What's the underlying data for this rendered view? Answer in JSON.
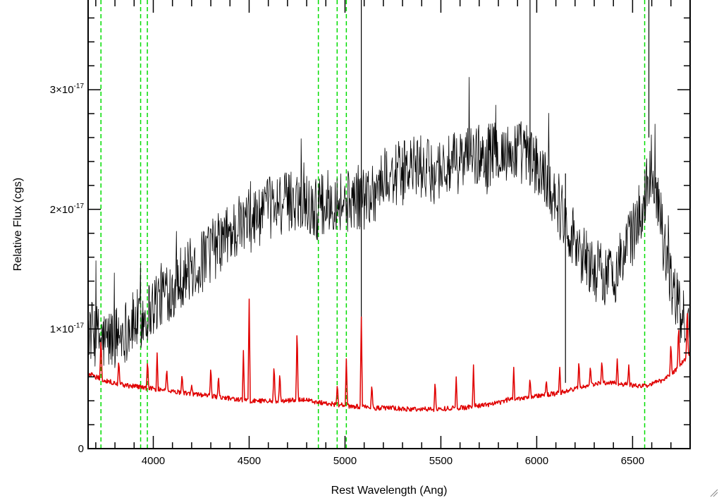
{
  "chart_data": {
    "type": "line",
    "title": "",
    "xlabel": "Rest Wavelength (Ang)",
    "ylabel": "Relative Flux (cgs)",
    "xlim": [
      3660,
      6800
    ],
    "ylim": [
      0,
      3.75e-17
    ],
    "x_ticks": [
      {
        "value": 4000,
        "label": "4000"
      },
      {
        "value": 4500,
        "label": "4500"
      },
      {
        "value": 5000,
        "label": "5000"
      },
      {
        "value": 5500,
        "label": "5500"
      },
      {
        "value": 6000,
        "label": "6000"
      },
      {
        "value": 6500,
        "label": "6500"
      }
    ],
    "y_ticks": [
      {
        "value": 0,
        "mantissa": "0",
        "exponent": ""
      },
      {
        "value": 1e-17,
        "mantissa": "1×10",
        "exponent": "-17"
      },
      {
        "value": 2e-17,
        "mantissa": "2×10",
        "exponent": "-17"
      },
      {
        "value": 3e-17,
        "mantissa": "3×10",
        "exponent": "-17"
      }
    ],
    "grid": false,
    "vertical_lines": [
      3727,
      3934,
      3969,
      4861,
      4959,
      5007,
      6563
    ],
    "series": [
      {
        "color": "#000000",
        "x": [
          3660,
          3700,
          3740,
          3780,
          3820,
          3860,
          3900,
          3950,
          4000,
          4050,
          4100,
          4150,
          4200,
          4250,
          4300,
          4350,
          4400,
          4450,
          4500,
          4550,
          4600,
          4650,
          4700,
          4750,
          4800,
          4850,
          4900,
          4950,
          5000,
          5050,
          5100,
          5150,
          5200,
          5250,
          5300,
          5350,
          5400,
          5450,
          5500,
          5550,
          5600,
          5650,
          5700,
          5750,
          5800,
          5850,
          5900,
          5950,
          6000,
          6050,
          6100,
          6150,
          6200,
          6250,
          6300,
          6350,
          6400,
          6450,
          6500,
          6550,
          6600,
          6650,
          6700,
          6750,
          6800
        ],
        "y": [
          1e-17,
          9.5e-18,
          9e-18,
          9.2e-18,
          9.5e-18,
          1e-17,
          1.05e-17,
          1.1e-17,
          1.2e-17,
          1.3e-17,
          1.35e-17,
          1.45e-17,
          1.5e-17,
          1.55e-17,
          1.65e-17,
          1.72e-17,
          1.8e-17,
          1.85e-17,
          1.9e-17,
          1.95e-17,
          2e-17,
          2.05e-17,
          2.05e-17,
          2.1e-17,
          2.05e-17,
          2e-17,
          2.05e-17,
          2.1e-17,
          2.05e-17,
          2.1e-17,
          2.1e-17,
          2.15e-17,
          2.25e-17,
          2.3e-17,
          2.3e-17,
          2.35e-17,
          2.35e-17,
          2.3e-17,
          2.35e-17,
          2.35e-17,
          2.4e-17,
          2.45e-17,
          2.45e-17,
          2.45e-17,
          2.5e-17,
          2.45e-17,
          2.5e-17,
          2.45e-17,
          2.35e-17,
          2.25e-17,
          2.1e-17,
          1.9e-17,
          1.75e-17,
          1.6e-17,
          1.5e-17,
          1.45e-17,
          1.45e-17,
          1.6e-17,
          1.8e-17,
          2e-17,
          2.4e-17,
          1.9e-17,
          1.4e-17,
          1.1e-17,
          1e-17
        ],
        "noise": 2.7e-18
      },
      {
        "color": "#e00000",
        "x": [
          3660,
          3700,
          3750,
          3800,
          3850,
          3900,
          3950,
          4000,
          4050,
          4100,
          4150,
          4200,
          4250,
          4300,
          4350,
          4400,
          4450,
          4500,
          4550,
          4600,
          4650,
          4700,
          4750,
          4800,
          4850,
          4900,
          4950,
          5000,
          5050,
          5100,
          5150,
          5200,
          5250,
          5300,
          5350,
          5400,
          5450,
          5500,
          5550,
          5600,
          5650,
          5700,
          5750,
          5800,
          5850,
          5900,
          5950,
          6000,
          6050,
          6100,
          6150,
          6200,
          6250,
          6300,
          6350,
          6400,
          6450,
          6500,
          6550,
          6600,
          6650,
          6700,
          6750,
          6800
        ],
        "y": [
          6.3e-18,
          6e-18,
          5.7e-18,
          5.5e-18,
          5.3e-18,
          5.2e-18,
          5.1e-18,
          5e-18,
          4.9e-18,
          4.8e-18,
          4.7e-18,
          4.6e-18,
          4.5e-18,
          4.4e-18,
          4.3e-18,
          4.2e-18,
          4.1e-18,
          4e-18,
          4e-18,
          4e-18,
          4e-18,
          4e-18,
          4.1e-18,
          4.1e-18,
          3.9e-18,
          3.8e-18,
          3.7e-18,
          3.6e-18,
          3.5e-18,
          3.5e-18,
          3.4e-18,
          3.4e-18,
          3.4e-18,
          3.3e-18,
          3.3e-18,
          3.3e-18,
          3.3e-18,
          3.3e-18,
          3.4e-18,
          3.4e-18,
          3.5e-18,
          3.6e-18,
          3.7e-18,
          3.8e-18,
          4.1e-18,
          4.2e-18,
          4.3e-18,
          4.4e-18,
          4.5e-18,
          4.6e-18,
          4.8e-18,
          5e-18,
          5.2e-18,
          5.4e-18,
          5.5e-18,
          5.5e-18,
          5.4e-18,
          5.3e-18,
          5.2e-18,
          5.4e-18,
          5.7e-18,
          6.2e-18,
          7e-18,
          8e-18
        ],
        "lines": [
          [
            3727,
            9.5e-18
          ],
          [
            3820,
            7.5e-18
          ],
          [
            3970,
            7.5e-18
          ],
          [
            4020,
            8e-18
          ],
          [
            4070,
            6.8e-18
          ],
          [
            4150,
            6.3e-18
          ],
          [
            4200,
            5.3e-18
          ],
          [
            4300,
            7e-18
          ],
          [
            4340,
            6.2e-18
          ],
          [
            4470,
            8.2e-18
          ],
          [
            4500,
            1.25e-17
          ],
          [
            4630,
            7.2e-18
          ],
          [
            4660,
            6.5e-18
          ],
          [
            4750,
            1.05e-17
          ],
          [
            4960,
            5.5e-18
          ],
          [
            5007,
            7.5e-18
          ],
          [
            5085,
            1.1e-17
          ],
          [
            5140,
            5.5e-18
          ],
          [
            5470,
            5.8e-18
          ],
          [
            5580,
            6e-18
          ],
          [
            5670,
            7e-18
          ],
          [
            5880,
            6.8e-18
          ],
          [
            5965,
            6e-18
          ],
          [
            6050,
            5.8e-18
          ],
          [
            6120,
            6.8e-18
          ],
          [
            6220,
            7.5e-18
          ],
          [
            6280,
            7e-18
          ],
          [
            6340,
            7.5e-18
          ],
          [
            6420,
            7.5e-18
          ],
          [
            6480,
            7e-18
          ],
          [
            6700,
            9e-18
          ],
          [
            6740,
            1.05e-17
          ],
          [
            6785,
            1.2e-17
          ]
        ],
        "noise": 4e-19
      }
    ]
  }
}
